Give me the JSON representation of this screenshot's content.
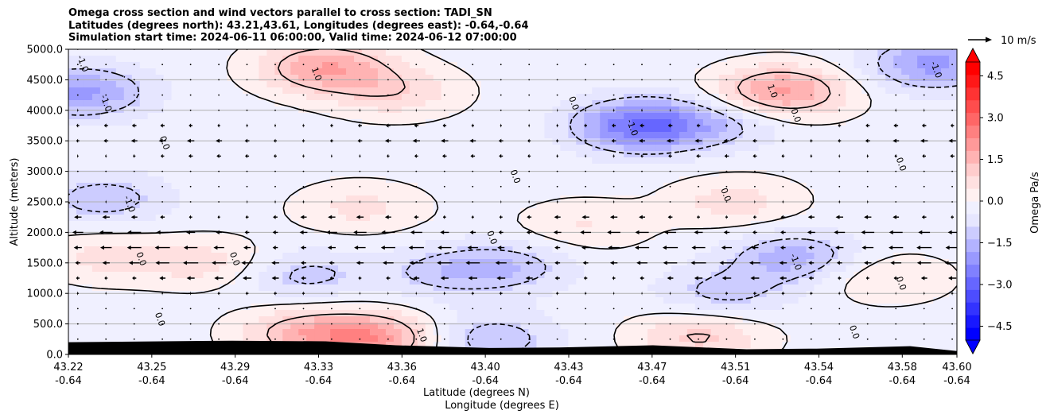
{
  "chart_data": {
    "type": "heatmap",
    "title": [
      "Omega cross section and wind vectors parallel to cross section: TADI_SN",
      "Latitudes (degrees north): 43.21,43.61, Longitudes (degrees east): -0.64,-0.64",
      "Simulation start time: 2024-06-11 06:00:00, Valid time: 2024-06-12 07:00:00"
    ],
    "xlabel": "Latitude (degrees N)",
    "xlabel2": "Longitude (degrees E)",
    "ylabel": "Altitude (meters)",
    "x_ticks": [
      {
        "lat": "43.22",
        "lon": "-0.64"
      },
      {
        "lat": "43.25",
        "lon": "-0.64"
      },
      {
        "lat": "43.29",
        "lon": "-0.64"
      },
      {
        "lat": "43.33",
        "lon": "-0.64"
      },
      {
        "lat": "43.36",
        "lon": "-0.64"
      },
      {
        "lat": "43.40",
        "lon": "-0.64"
      },
      {
        "lat": "43.43",
        "lon": "-0.64"
      },
      {
        "lat": "43.47",
        "lon": "-0.64"
      },
      {
        "lat": "43.51",
        "lon": "-0.64"
      },
      {
        "lat": "43.54",
        "lon": "-0.64"
      },
      {
        "lat": "43.58",
        "lon": "-0.64"
      },
      {
        "lat": "43.60",
        "lon": "-0.64"
      }
    ],
    "y_ticks": [
      "0.0",
      "500.0",
      "1000.0",
      "1500.0",
      "2000.0",
      "2500.0",
      "3000.0",
      "3500.0",
      "4000.0",
      "4500.0",
      "5000.0"
    ],
    "ylim": [
      0,
      5000
    ],
    "grid": "horizontal",
    "colorbar": {
      "label": "Omega Pa/s",
      "ticks": [
        "−4.5",
        "−3.0",
        "−1.5",
        "0.0",
        "1.5",
        "3.0",
        "4.5"
      ],
      "range": [
        -5,
        5
      ],
      "colors": [
        "#0000ff",
        "#1818ff",
        "#3333ff",
        "#4d4dff",
        "#6666ff",
        "#8080ff",
        "#9999ff",
        "#b3b3ff",
        "#ccccff",
        "#e6e6ff",
        "#f0f0ff",
        "#fff0f0",
        "#ffe0e0",
        "#ffcccc",
        "#ffb3b3",
        "#ff9999",
        "#ff8080",
        "#ff6666",
        "#ff4d4d",
        "#ff3333",
        "#ff1818",
        "#ff0000"
      ]
    },
    "quiver_key": "10 m/s",
    "contour_labels": [
      "-1.0",
      "1.0",
      "0.0"
    ],
    "fields": {
      "omega_blobs": [
        {
          "lat": 43.225,
          "alt": 4300,
          "v": -1.8
        },
        {
          "lat": 43.33,
          "alt": 4700,
          "v": 2.0
        },
        {
          "lat": 43.36,
          "alt": 4300,
          "v": 1.0
        },
        {
          "lat": 43.465,
          "alt": 3750,
          "v": -2.6
        },
        {
          "lat": 43.525,
          "alt": 4300,
          "v": 2.2
        },
        {
          "lat": 43.59,
          "alt": 4750,
          "v": -1.8
        },
        {
          "lat": 43.235,
          "alt": 1600,
          "v": 0.8
        },
        {
          "lat": 43.28,
          "alt": 1500,
          "v": 0.9
        },
        {
          "lat": 43.235,
          "alt": 2550,
          "v": -1.1
        },
        {
          "lat": 43.32,
          "alt": 1300,
          "v": -1.0
        },
        {
          "lat": 43.38,
          "alt": 1350,
          "v": -0.9
        },
        {
          "lat": 43.41,
          "alt": 1450,
          "v": -1.0
        },
        {
          "lat": 43.53,
          "alt": 1600,
          "v": -1.4
        },
        {
          "lat": 43.5,
          "alt": 1000,
          "v": -1.0
        },
        {
          "lat": 43.35,
          "alt": 260,
          "v": 2.2
        },
        {
          "lat": 43.32,
          "alt": 350,
          "v": 1.4
        },
        {
          "lat": 43.49,
          "alt": 300,
          "v": 1.3
        },
        {
          "lat": 43.4,
          "alt": 250,
          "v": -1.2
        },
        {
          "lat": 43.345,
          "alt": 2400,
          "v": 0.8
        },
        {
          "lat": 43.44,
          "alt": 2100,
          "v": 0.7
        },
        {
          "lat": 43.505,
          "alt": 2500,
          "v": 0.9
        },
        {
          "lat": 43.5,
          "alt": 3800,
          "v": -0.9
        },
        {
          "lat": 43.57,
          "alt": 1250,
          "v": 0.7
        }
      ],
      "wind": [
        {
          "alt": 5000,
          "u": 0
        },
        {
          "alt": 4750,
          "u": 0
        },
        {
          "alt": 4500,
          "u": 0
        },
        {
          "alt": 4250,
          "u": 0
        },
        {
          "alt": 4000,
          "u": -0.5
        },
        {
          "alt": 3750,
          "u": -1.5
        },
        {
          "alt": 3500,
          "u": -2.5
        },
        {
          "alt": 3250,
          "u": -1.5
        },
        {
          "alt": 3000,
          "u": 0
        },
        {
          "alt": 2750,
          "u": 0
        },
        {
          "alt": 2500,
          "u": -0.5
        },
        {
          "alt": 2250,
          "u": -2.5
        },
        {
          "alt": 2000,
          "u": -4.5
        },
        {
          "alt": 1750,
          "u": -5
        },
        {
          "alt": 1500,
          "u": -5
        },
        {
          "alt": 1250,
          "u": -3
        },
        {
          "alt": 1000,
          "u": -1
        },
        {
          "alt": 750,
          "u": 0
        },
        {
          "alt": 500,
          "u": 0
        },
        {
          "alt": 250,
          "u": 0
        }
      ],
      "terrain_top_m": [
        {
          "lat": 43.22,
          "alt": 200
        },
        {
          "lat": 43.29,
          "alt": 225
        },
        {
          "lat": 43.33,
          "alt": 215
        },
        {
          "lat": 43.36,
          "alt": 150
        },
        {
          "lat": 43.4,
          "alt": 105
        },
        {
          "lat": 43.43,
          "alt": 115
        },
        {
          "lat": 43.47,
          "alt": 150
        },
        {
          "lat": 43.51,
          "alt": 85
        },
        {
          "lat": 43.54,
          "alt": 95
        },
        {
          "lat": 43.58,
          "alt": 135
        },
        {
          "lat": 43.6,
          "alt": 55
        }
      ]
    }
  }
}
